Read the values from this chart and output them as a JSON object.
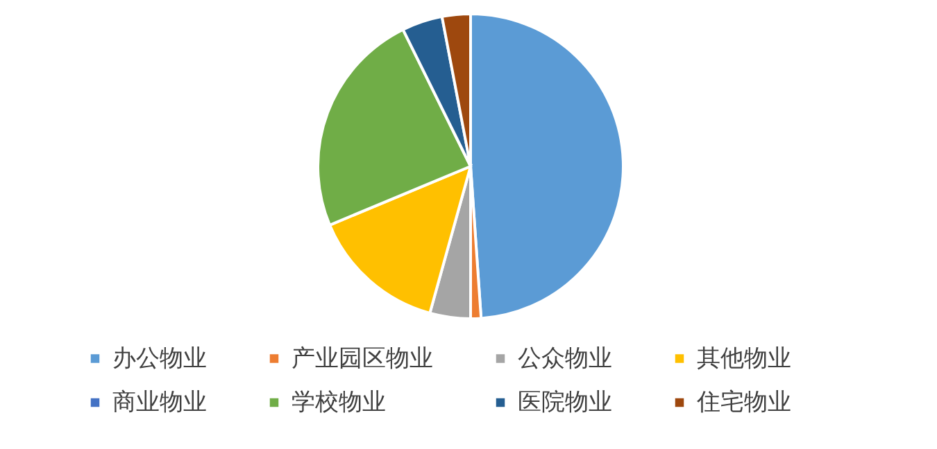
{
  "chart_data": {
    "type": "pie",
    "categories": [
      "办公物业",
      "产业园区物业",
      "公众物业",
      "其他物业",
      "商业物业",
      "学校物业",
      "医院物业",
      "住宅物业"
    ],
    "values": [
      48.9,
      1.1,
      4.3,
      14.4,
      0,
      24,
      4.3,
      3
    ],
    "colors": [
      "#5b9bd5",
      "#ed7d31",
      "#a5a5a5",
      "#ffc000",
      "#4472c4",
      "#70ad47",
      "#255e91",
      "#9e480e"
    ],
    "legend": "bottom"
  }
}
